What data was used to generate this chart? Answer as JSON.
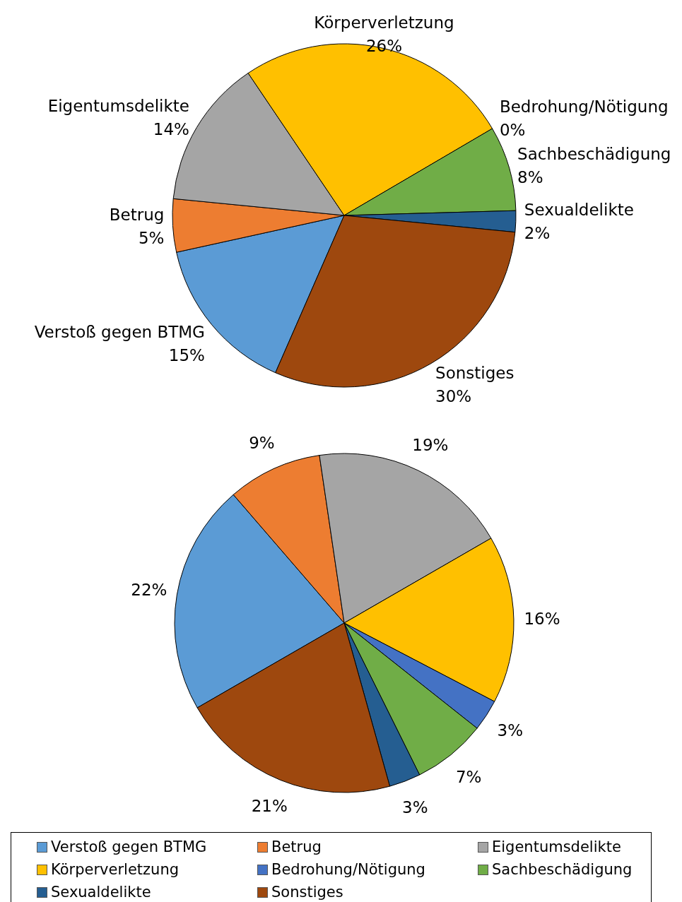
{
  "chart_data": [
    {
      "type": "pie",
      "categories": [
        "Verstoß gegen BTMG",
        "Betrug",
        "Eigentumsdelikte",
        "Körperverletzung",
        "Bedrohung/Nötigung",
        "Sachbeschädigung",
        "Sexualdelikte",
        "Sonstiges"
      ],
      "values": [
        15,
        5,
        14,
        26,
        0,
        8,
        2,
        30
      ],
      "colors": [
        "#5b9bd5",
        "#ed7d31",
        "#a5a5a5",
        "#ffc000",
        "#4472c4",
        "#70ad47",
        "#255e91",
        "#9e480e"
      ],
      "value_labels": [
        "15%",
        "5%",
        "14%",
        "26%",
        "0%",
        "8%",
        "2%",
        "30%"
      ],
      "legend": false
    },
    {
      "type": "pie",
      "categories": [
        "Verstoß gegen BTMG",
        "Betrug",
        "Eigentumsdelikte",
        "Körperverletzung",
        "Bedrohung/Nötigung",
        "Sachbeschädigung",
        "Sexualdelikte",
        "Sonstiges"
      ],
      "values": [
        22,
        9,
        19,
        16,
        3,
        7,
        3,
        21
      ],
      "colors": [
        "#5b9bd5",
        "#ed7d31",
        "#a5a5a5",
        "#ffc000",
        "#4472c4",
        "#70ad47",
        "#255e91",
        "#9e480e"
      ],
      "value_labels": [
        "22%",
        "9%",
        "19%",
        "16%",
        "3%",
        "7%",
        "3%",
        "21%"
      ],
      "legend": "bottom"
    }
  ]
}
